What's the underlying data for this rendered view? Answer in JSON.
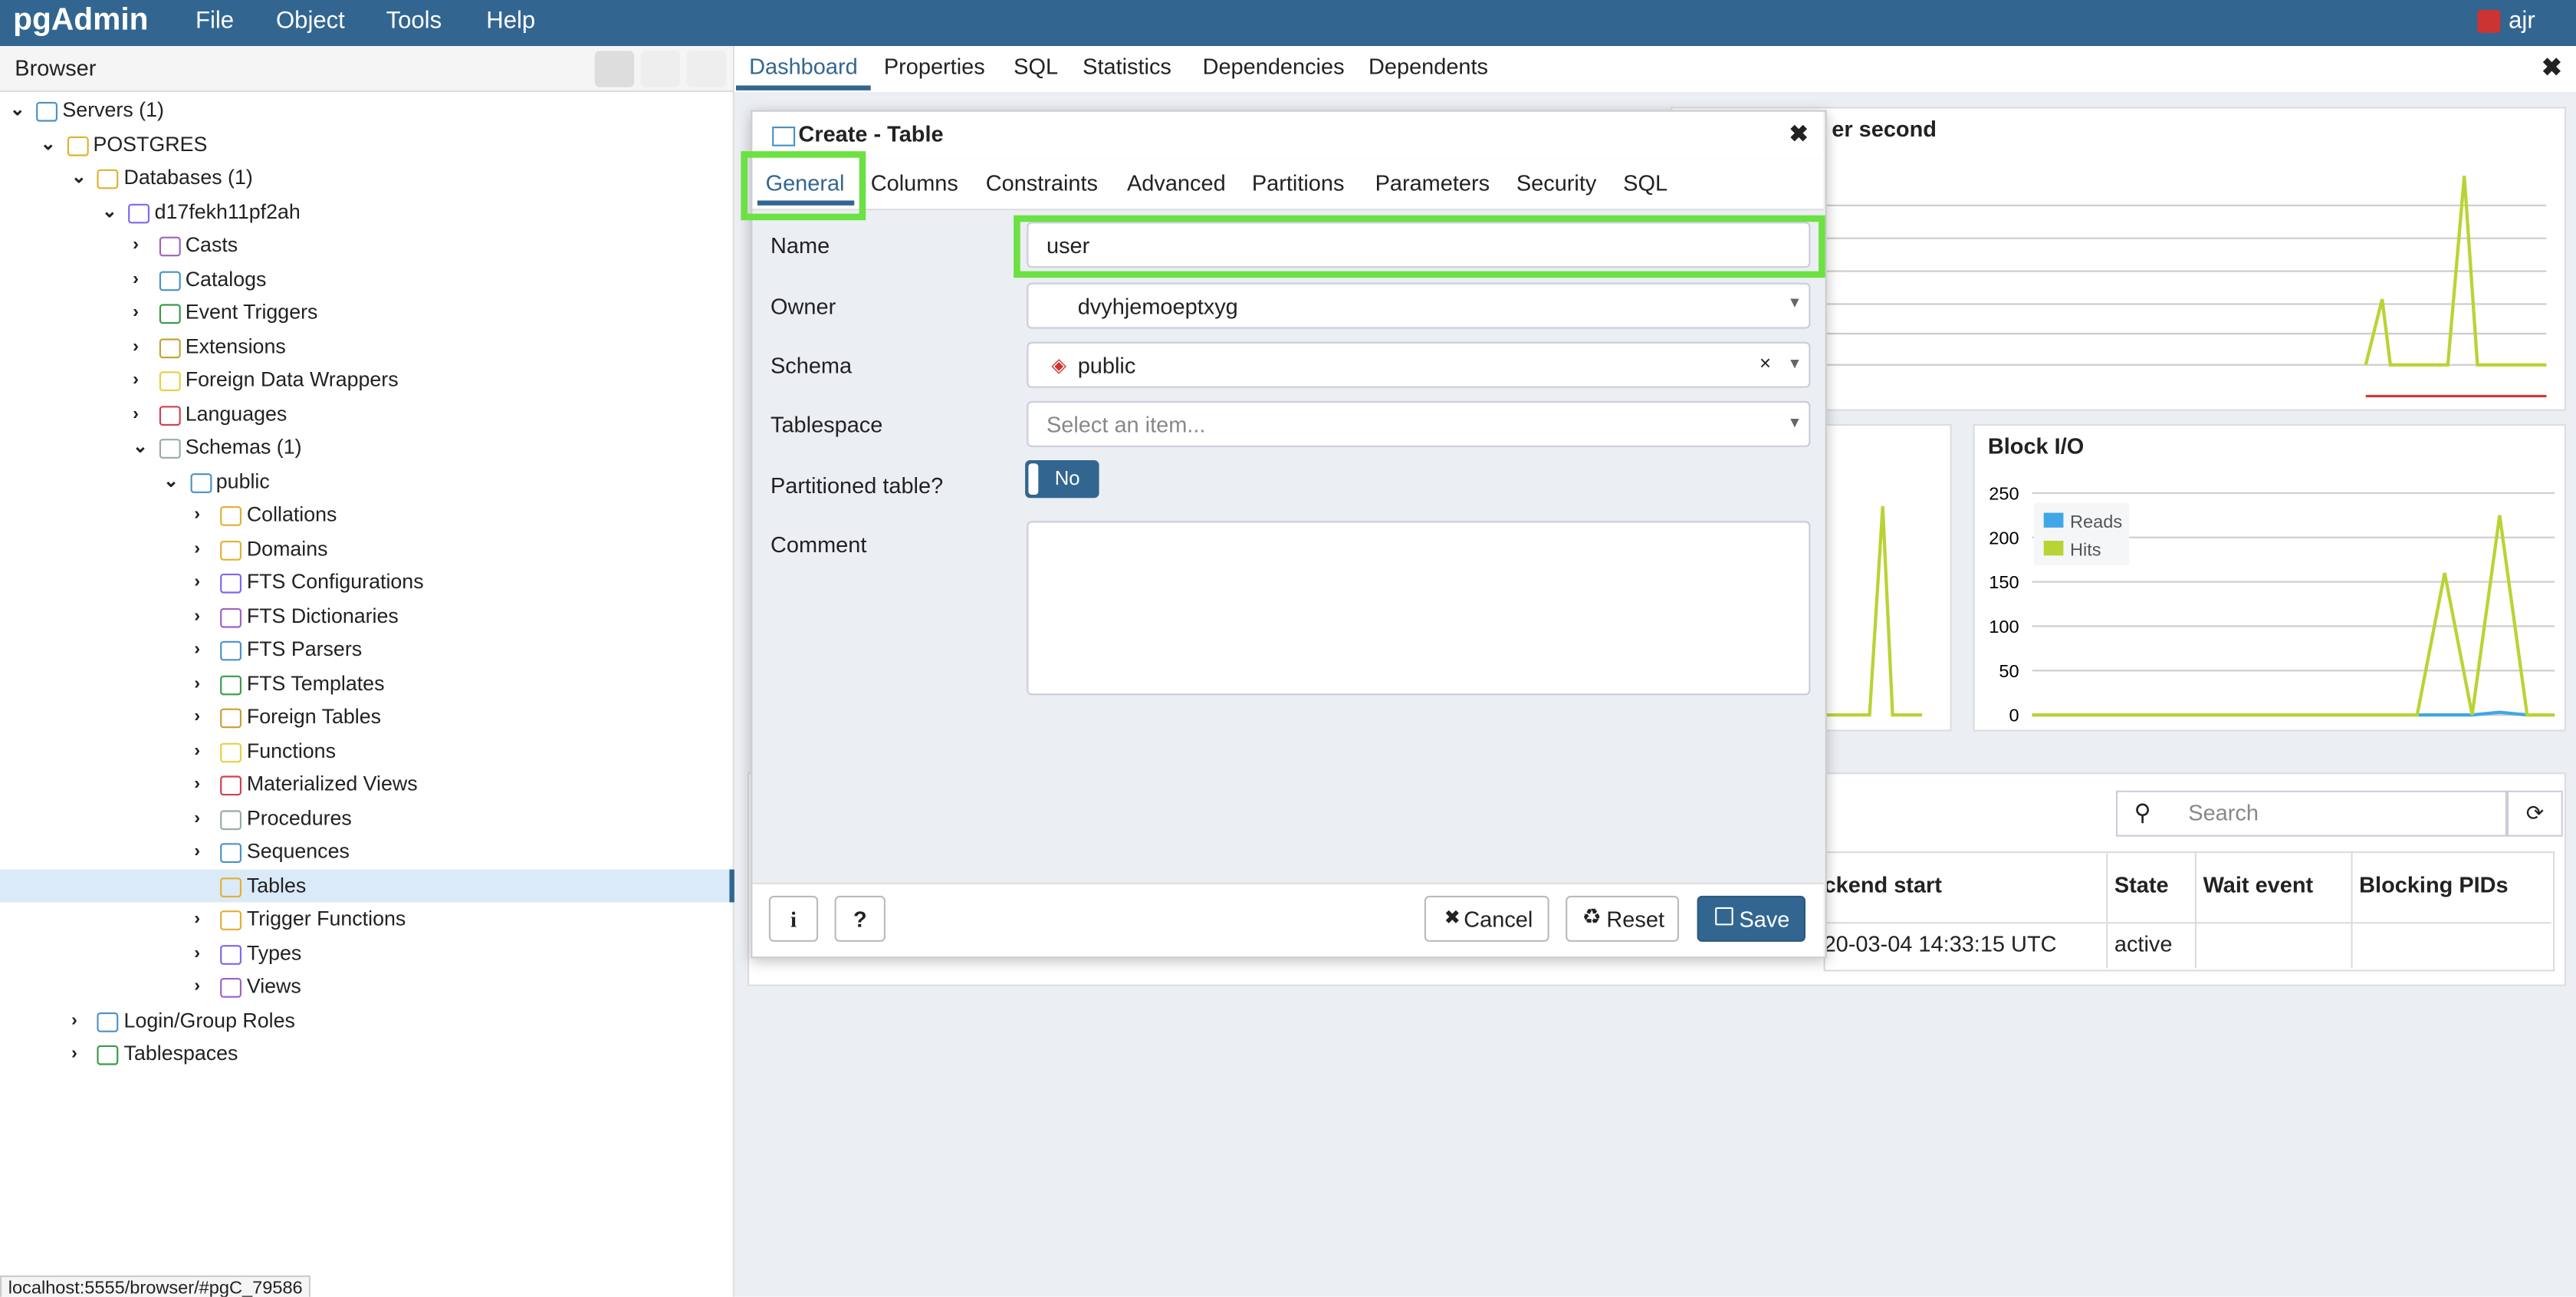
{
  "navbar": {
    "logo": "pgAdmin",
    "menus": [
      "File",
      "Object",
      "Tools",
      "Help"
    ],
    "user": "ajr"
  },
  "browser": {
    "title": "Browser",
    "tree": [
      {
        "label": "Servers (1)",
        "children": [
          {
            "label": "POSTGRES",
            "children": [
              {
                "label": "Databases (1)",
                "children": [
                  {
                    "label": "d17fekh11pf2ah",
                    "children": [
                      {
                        "label": "Casts"
                      },
                      {
                        "label": "Catalogs"
                      },
                      {
                        "label": "Event Triggers"
                      },
                      {
                        "label": "Extensions"
                      },
                      {
                        "label": "Foreign Data Wrappers"
                      },
                      {
                        "label": "Languages"
                      },
                      {
                        "label": "Schemas (1)",
                        "children": [
                          {
                            "label": "public",
                            "children": [
                              {
                                "label": "Collations"
                              },
                              {
                                "label": "Domains"
                              },
                              {
                                "label": "FTS Configurations"
                              },
                              {
                                "label": "FTS Dictionaries"
                              },
                              {
                                "label": "FTS Parsers"
                              },
                              {
                                "label": "FTS Templates"
                              },
                              {
                                "label": "Foreign Tables"
                              },
                              {
                                "label": "Functions"
                              },
                              {
                                "label": "Materialized Views"
                              },
                              {
                                "label": "Procedures"
                              },
                              {
                                "label": "Sequences"
                              },
                              {
                                "label": "Tables",
                                "selected": true
                              },
                              {
                                "label": "Trigger Functions"
                              },
                              {
                                "label": "Types"
                              },
                              {
                                "label": "Views"
                              }
                            ]
                          }
                        ]
                      }
                    ]
                  }
                ]
              },
              {
                "label": "Login/Group Roles"
              },
              {
                "label": "Tablespaces"
              }
            ]
          }
        ]
      }
    ]
  },
  "main_tabs": [
    "Dashboard",
    "Properties",
    "SQL",
    "Statistics",
    "Dependencies",
    "Dependents"
  ],
  "dashboard": {
    "top_panel_title": "er second",
    "activity": {
      "search_placeholder": "Search",
      "columns": [
        "ckend start",
        "State",
        "Wait event",
        "Blocking PIDs"
      ],
      "rows": [
        [
          "20-03-04 14:33:15 UTC",
          "active"
        ]
      ]
    }
  },
  "chart_data": {
    "type": "line",
    "title": "Block I/O",
    "ylim": [
      0,
      250
    ],
    "yticks": [
      0,
      50,
      100,
      150,
      200,
      250
    ],
    "grid": true,
    "series": [
      {
        "name": "Reads",
        "color": "#3fa7e8",
        "values": [
          0,
          0,
          0,
          0,
          0,
          0,
          0,
          0,
          0,
          0,
          0,
          0,
          0,
          0,
          0,
          0,
          0,
          3,
          0,
          0
        ]
      },
      {
        "name": "Hits",
        "color": "#b8d434",
        "values": [
          0,
          0,
          0,
          0,
          0,
          0,
          0,
          0,
          0,
          0,
          0,
          0,
          0,
          0,
          0,
          160,
          0,
          225,
          0,
          0
        ]
      }
    ]
  },
  "dialog": {
    "title": "Create - Table",
    "tabs": [
      "General",
      "Columns",
      "Constraints",
      "Advanced",
      "Partitions",
      "Parameters",
      "Security",
      "SQL"
    ],
    "fields": {
      "name": {
        "label": "Name",
        "value": "user"
      },
      "owner": {
        "label": "Owner",
        "value": "dvyhjemoeptxyg"
      },
      "schema": {
        "label": "Schema",
        "value": "public"
      },
      "tablespace": {
        "label": "Tablespace",
        "placeholder": "Select an item..."
      },
      "partitioned": {
        "label": "Partitioned table?",
        "value": "No"
      },
      "comment": {
        "label": "Comment"
      }
    },
    "buttons": {
      "info": "i",
      "help": "?",
      "cancel": "Cancel",
      "reset": "Reset",
      "save": "Save"
    }
  },
  "status_url": "localhost:5555/browser/#pgC_79586"
}
